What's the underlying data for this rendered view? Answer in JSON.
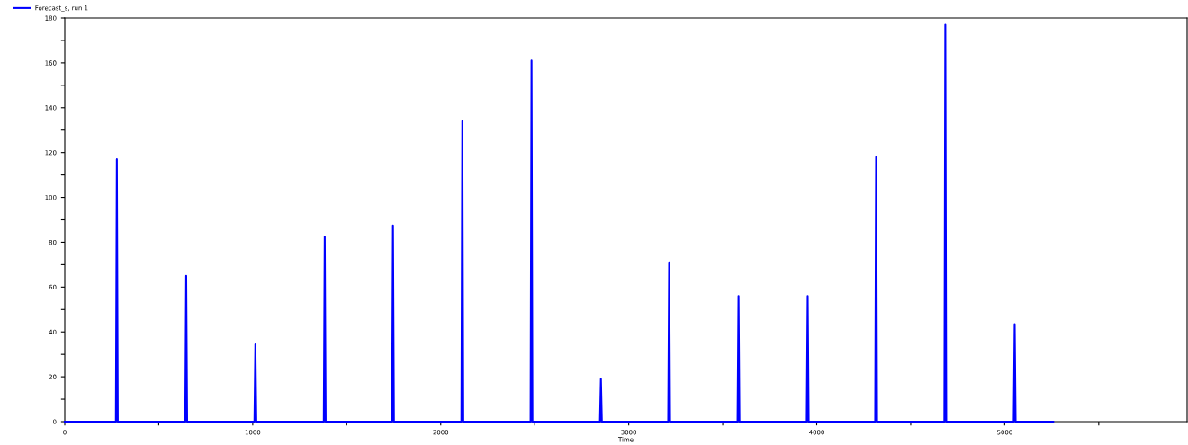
{
  "chart_data": {
    "type": "line",
    "xlabel": "Time",
    "legend": "top left",
    "grid": false,
    "marker": "none",
    "line_style": "solid",
    "xlim": [
      0,
      5970
    ],
    "ylim": [
      0,
      180
    ],
    "xticks": [
      0,
      {
        "value": 500,
        "label": null
      },
      1000,
      {
        "value": 1500,
        "label": null
      },
      2000,
      {
        "value": 2500,
        "label": null
      },
      3000,
      {
        "value": 3500,
        "label": null
      },
      4000,
      {
        "value": 4500,
        "label": null
      },
      5000,
      {
        "value": 5500,
        "label": null
      }
    ],
    "yticks": [
      0,
      {
        "value": 10,
        "label": null
      },
      20,
      {
        "value": 30,
        "label": null
      },
      40,
      {
        "value": 50,
        "label": null
      },
      60,
      {
        "value": 70,
        "label": null
      },
      80,
      {
        "value": 90,
        "label": null
      },
      100,
      {
        "value": 110,
        "label": null
      },
      120,
      {
        "value": 130,
        "label": null
      },
      140,
      {
        "value": 150,
        "label": null
      },
      160,
      {
        "value": 170,
        "label": null
      },
      180
    ],
    "series": [
      {
        "name": "Forecast_s, run 1",
        "color": "#0000ff",
        "x": [
          0,
          272,
          277,
          282,
          641,
          646,
          651,
          1009,
          1014,
          1019,
          1378,
          1383,
          1388,
          1741,
          1746,
          1751,
          2110,
          2115,
          2120,
          2478,
          2483,
          2488,
          2847,
          2852,
          2857,
          3210,
          3215,
          3220,
          3579,
          3584,
          3589,
          3947,
          3952,
          3957,
          4311,
          4316,
          4321,
          4679,
          4684,
          4689,
          5048,
          5053,
          5058,
          5258
        ],
        "values": [
          0,
          0,
          117,
          0,
          0,
          65,
          0,
          0,
          34.5,
          0,
          0,
          82.5,
          0,
          0,
          87.5,
          0,
          0,
          134,
          0,
          0,
          161,
          0,
          0,
          19,
          0,
          0,
          71,
          0,
          0,
          56,
          0,
          0,
          56,
          0,
          0,
          118,
          0,
          0,
          177,
          0,
          0,
          43.5,
          0,
          0
        ]
      }
    ]
  }
}
